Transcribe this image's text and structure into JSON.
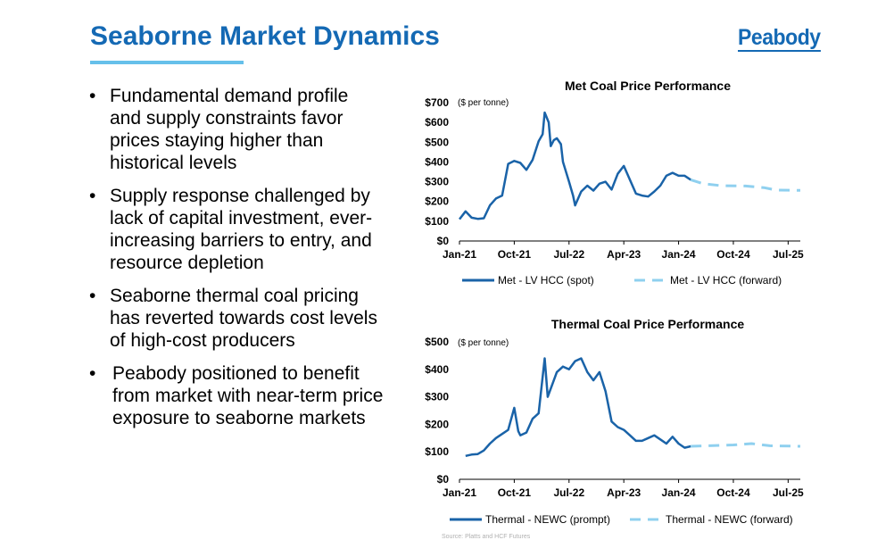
{
  "slide": {
    "title": "Seaborne Market Dynamics",
    "logo": "Peabody",
    "source": "Source: Platts and HCF Futures"
  },
  "bullets": [
    "Fundamental demand profile and supply constraints favor prices staying higher than historical levels",
    "Supply response challenged by lack of capital investment, ever-increasing barriers to entry, and resource depletion",
    "Seaborne thermal coal pricing has reverted towards cost levels of high-cost producers",
    "Peabody positioned to benefit from market with near-term price exposure to seaborne markets"
  ],
  "bullet_glyph": "•",
  "colors": {
    "accent": "#1469b4",
    "rule": "#66c0ea",
    "spot": "#1a63a8",
    "forward": "#8fd0ef"
  },
  "chart_data": [
    {
      "type": "line",
      "title": "Met Coal Price Performance",
      "unit_label": "($ per tonne)",
      "x_ticks": [
        "Jan-21",
        "Oct-21",
        "Jul-22",
        "Apr-23",
        "Jan-24",
        "Oct-24",
        "Jul-25"
      ],
      "y_ticks": [
        "$0",
        "$100",
        "$200",
        "$300",
        "$400",
        "$500",
        "$600",
        "$700"
      ],
      "ylim": [
        0,
        700
      ],
      "x_range": [
        "2021-01",
        "2025-09"
      ],
      "legend_position": "bottom",
      "series": [
        {
          "name": "Met - LV HCC (spot)",
          "style": "solid",
          "points": [
            [
              "2021-01",
              110
            ],
            [
              "2021-02",
              150
            ],
            [
              "2021-03",
              118
            ],
            [
              "2021-04",
              112
            ],
            [
              "2021-05",
              115
            ],
            [
              "2021-06",
              180
            ],
            [
              "2021-07",
              215
            ],
            [
              "2021-08",
              230
            ],
            [
              "2021-09",
              390
            ],
            [
              "2021-10",
              405
            ],
            [
              "2021-11",
              395
            ],
            [
              "2021-12",
              360
            ],
            [
              "2022-01",
              410
            ],
            [
              "2022-02",
              505
            ],
            [
              "2022-02-20",
              540
            ],
            [
              "2022-03",
              650
            ],
            [
              "2022-03-20",
              600
            ],
            [
              "2022-04",
              480
            ],
            [
              "2022-04-15",
              510
            ],
            [
              "2022-05",
              520
            ],
            [
              "2022-05-20",
              490
            ],
            [
              "2022-06",
              400
            ],
            [
              "2022-07",
              300
            ],
            [
              "2022-07-20",
              230
            ],
            [
              "2022-08",
              180
            ],
            [
              "2022-09",
              250
            ],
            [
              "2022-10",
              280
            ],
            [
              "2022-11",
              255
            ],
            [
              "2022-12",
              290
            ],
            [
              "2023-01",
              300
            ],
            [
              "2023-02",
              260
            ],
            [
              "2023-03",
              340
            ],
            [
              "2023-04",
              380
            ],
            [
              "2023-05",
              310
            ],
            [
              "2023-06",
              240
            ],
            [
              "2023-07",
              230
            ],
            [
              "2023-08",
              225
            ],
            [
              "2023-09",
              250
            ],
            [
              "2023-10",
              280
            ],
            [
              "2023-11",
              330
            ],
            [
              "2023-12",
              345
            ],
            [
              "2024-01",
              330
            ],
            [
              "2024-02",
              330
            ],
            [
              "2024-03",
              310
            ]
          ]
        },
        {
          "name": "Met - LV HCC (forward)",
          "style": "dashed",
          "points": [
            [
              "2024-03",
              310
            ],
            [
              "2024-05",
              290
            ],
            [
              "2024-08",
              280
            ],
            [
              "2024-12",
              278
            ],
            [
              "2025-03",
              270
            ],
            [
              "2025-05",
              258
            ],
            [
              "2025-09",
              256
            ]
          ]
        }
      ]
    },
    {
      "type": "line",
      "title": "Thermal Coal Price Performance",
      "unit_label": "($ per tonne)",
      "x_ticks": [
        "Jan-21",
        "Oct-21",
        "Jul-22",
        "Apr-23",
        "Jan-24",
        "Oct-24",
        "Jul-25"
      ],
      "y_ticks": [
        "$0",
        "$100",
        "$200",
        "$300",
        "$400",
        "$500"
      ],
      "ylim": [
        0,
        500
      ],
      "x_range": [
        "2021-01",
        "2025-09"
      ],
      "legend_position": "bottom",
      "series": [
        {
          "name": "Thermal - NEWC (prompt)",
          "style": "solid",
          "points": [
            [
              "2021-02",
              85
            ],
            [
              "2021-03",
              90
            ],
            [
              "2021-04",
              92
            ],
            [
              "2021-05",
              105
            ],
            [
              "2021-06",
              130
            ],
            [
              "2021-07",
              150
            ],
            [
              "2021-08",
              165
            ],
            [
              "2021-09",
              180
            ],
            [
              "2021-10",
              260
            ],
            [
              "2021-10-20",
              175
            ],
            [
              "2021-11",
              160
            ],
            [
              "2021-12",
              170
            ],
            [
              "2022-01",
              220
            ],
            [
              "2022-02",
              240
            ],
            [
              "2022-03",
              440
            ],
            [
              "2022-03-15",
              300
            ],
            [
              "2022-04",
              330
            ],
            [
              "2022-05",
              390
            ],
            [
              "2022-06",
              410
            ],
            [
              "2022-07",
              400
            ],
            [
              "2022-08",
              430
            ],
            [
              "2022-09",
              440
            ],
            [
              "2022-10",
              390
            ],
            [
              "2022-11",
              360
            ],
            [
              "2022-12",
              390
            ],
            [
              "2023-01",
              320
            ],
            [
              "2023-02",
              210
            ],
            [
              "2023-03",
              190
            ],
            [
              "2023-04",
              180
            ],
            [
              "2023-05",
              160
            ],
            [
              "2023-06",
              140
            ],
            [
              "2023-07",
              140
            ],
            [
              "2023-08",
              150
            ],
            [
              "2023-09",
              160
            ],
            [
              "2023-10",
              145
            ],
            [
              "2023-11",
              130
            ],
            [
              "2023-12",
              155
            ],
            [
              "2024-01",
              130
            ],
            [
              "2024-02",
              115
            ],
            [
              "2024-03",
              120
            ]
          ]
        },
        {
          "name": "Thermal - NEWC  (forward)",
          "style": "dashed",
          "points": [
            [
              "2024-03",
              120
            ],
            [
              "2024-06",
              122
            ],
            [
              "2024-10",
              125
            ],
            [
              "2025-01",
              130
            ],
            [
              "2025-04",
              122
            ],
            [
              "2025-09",
              120
            ]
          ]
        }
      ]
    }
  ]
}
